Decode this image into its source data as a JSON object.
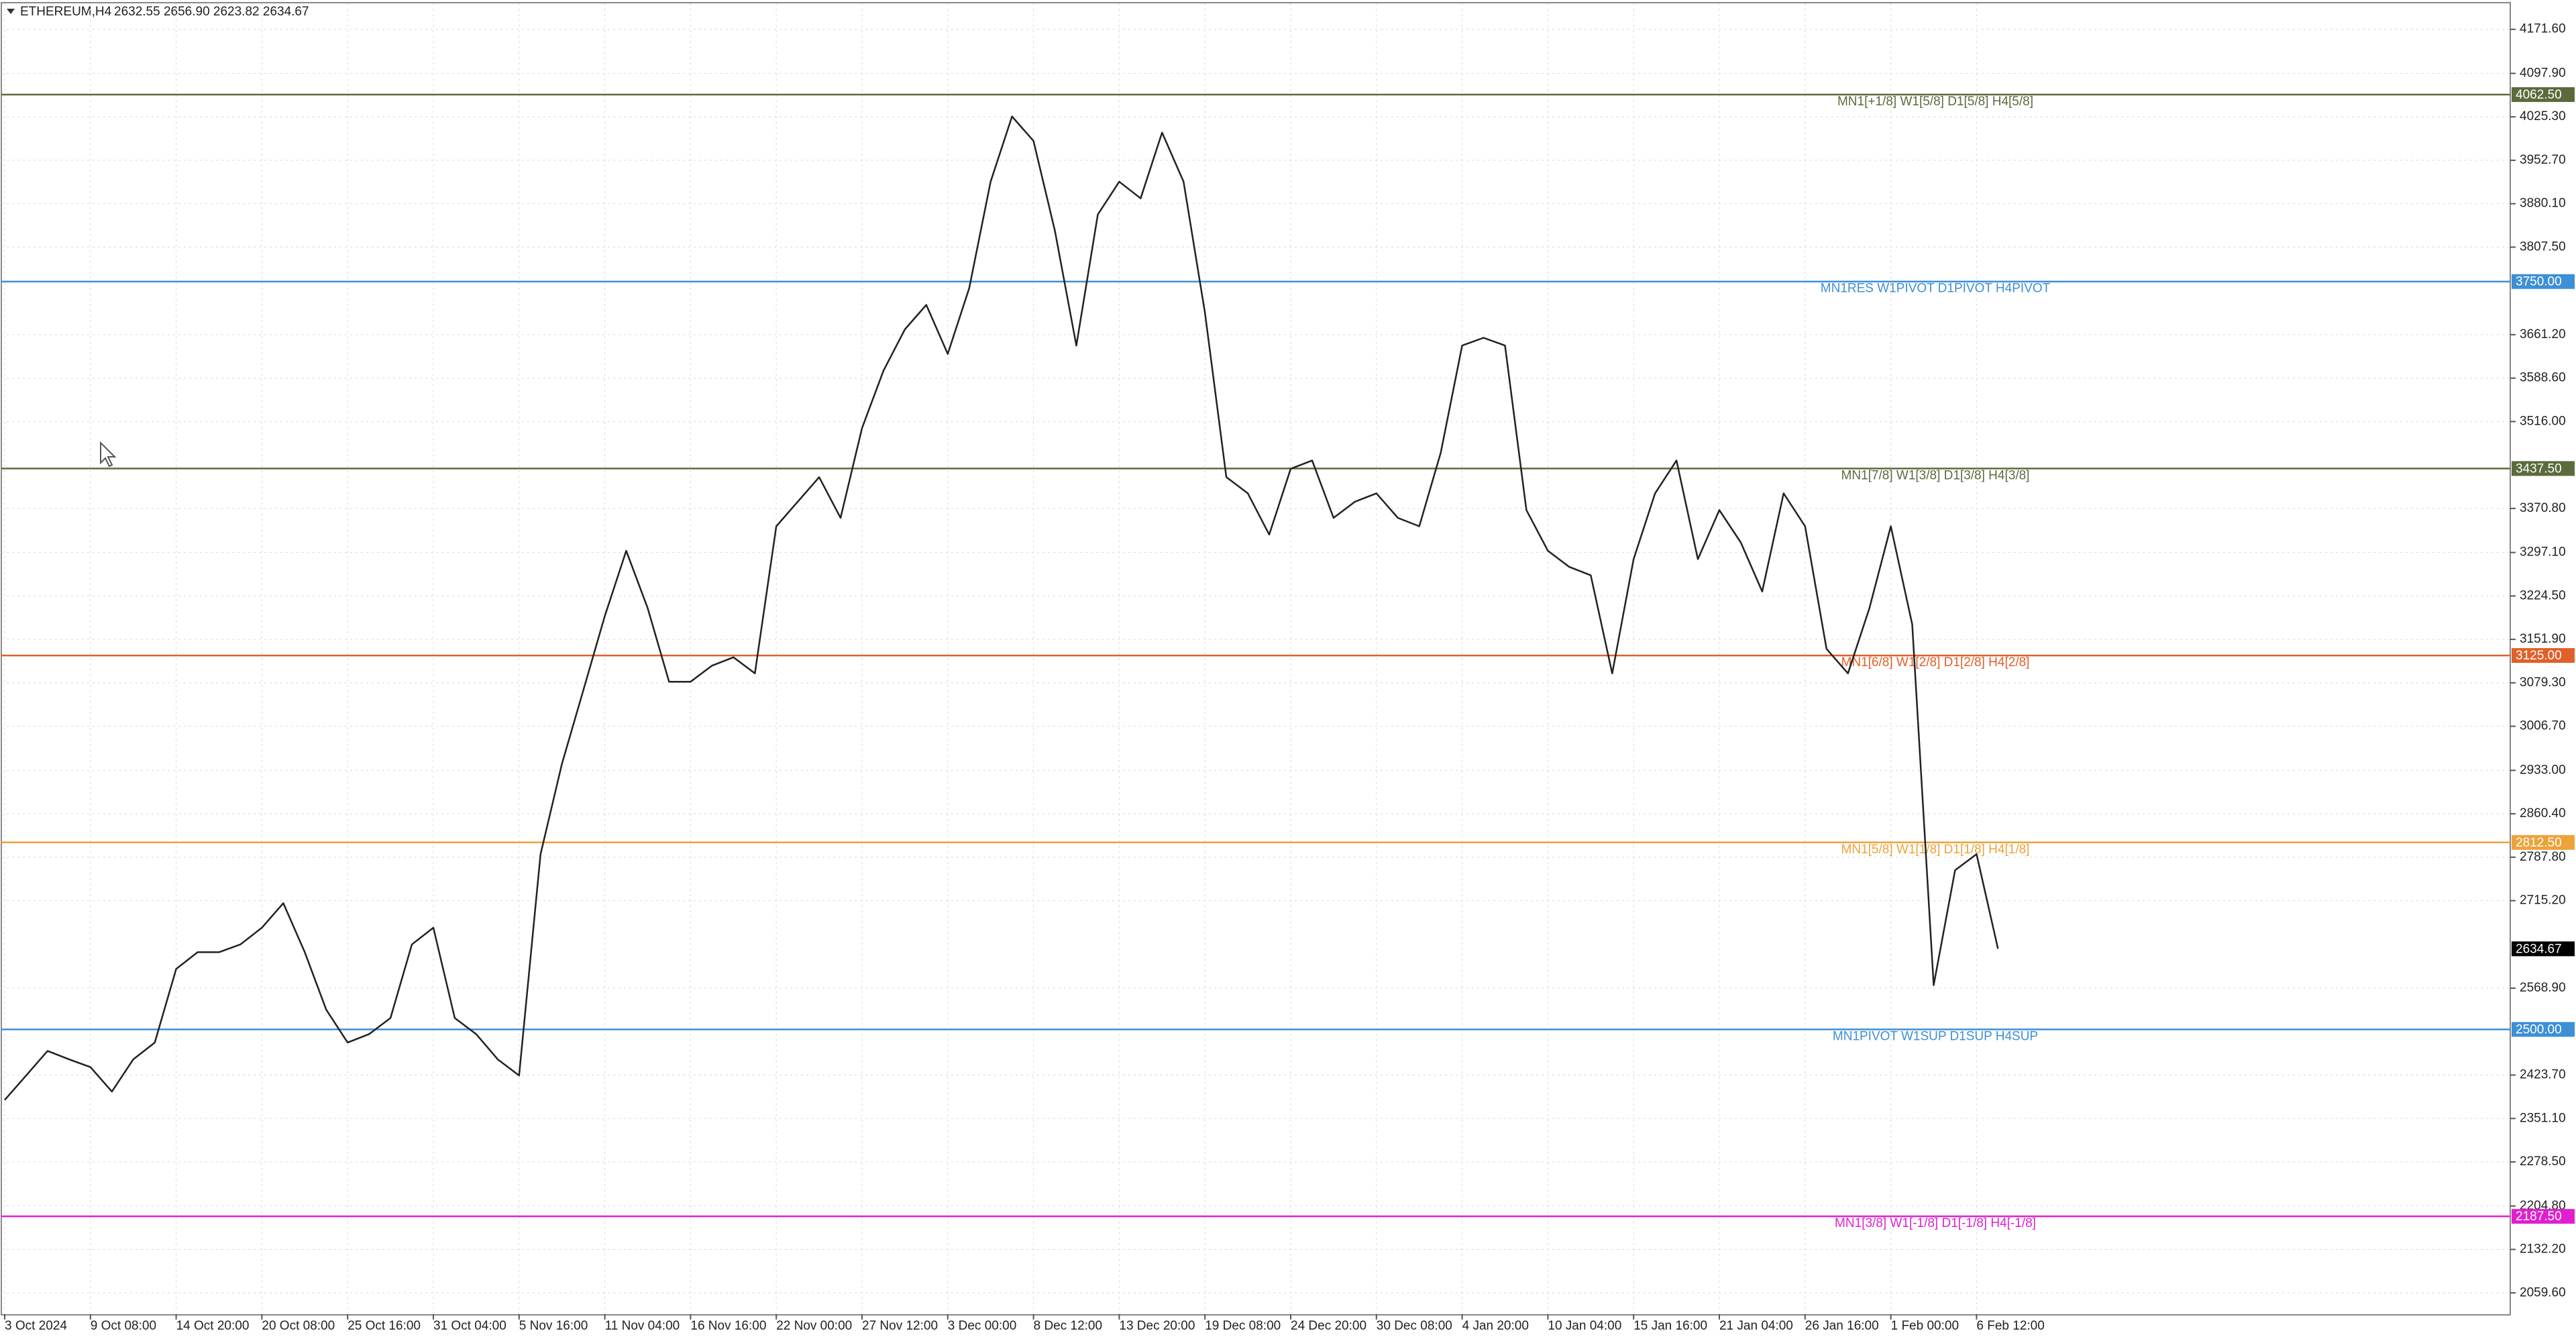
{
  "chart_data": {
    "type": "line",
    "header": {
      "symbol": "ETHEREUM,H4",
      "ohlc": "2632.55 2656.90 2623.82 2634.67"
    },
    "ylim": [
      2024,
      4215
    ],
    "yticks": [
      {
        "value": 4171.6,
        "label": "4171.60"
      },
      {
        "value": 4097.9,
        "label": "4097.90"
      },
      {
        "value": 4025.3,
        "label": "4025.30"
      },
      {
        "value": 3952.7,
        "label": "3952.70"
      },
      {
        "value": 3880.1,
        "label": "3880.10"
      },
      {
        "value": 3807.5,
        "label": "3807.50"
      },
      {
        "value": 3661.2,
        "label": "3661.20"
      },
      {
        "value": 3588.6,
        "label": "3588.60"
      },
      {
        "value": 3516,
        "label": "3516.00"
      },
      {
        "value": 3370.8,
        "label": "3370.80"
      },
      {
        "value": 3297.1,
        "label": "3297.10"
      },
      {
        "value": 3224.5,
        "label": "3224.50"
      },
      {
        "value": 3151.9,
        "label": "3151.90"
      },
      {
        "value": 3079.3,
        "label": "3079.30"
      },
      {
        "value": 3006.7,
        "label": "3006.70"
      },
      {
        "value": 2933,
        "label": "2933.00"
      },
      {
        "value": 2860.4,
        "label": "2860.40"
      },
      {
        "value": 2787.8,
        "label": "2787.80"
      },
      {
        "value": 2715.2,
        "label": "2715.20"
      },
      {
        "value": 2568.9,
        "label": "2568.90"
      },
      {
        "value": 2423.7,
        "label": "2423.70"
      },
      {
        "value": 2351.1,
        "label": "2351.10"
      },
      {
        "value": 2278.5,
        "label": "2278.50"
      },
      {
        "value": 2204.8,
        "label": "2204.80"
      },
      {
        "value": 2132.2,
        "label": "2132.20"
      },
      {
        "value": 2059.6,
        "label": "2059.60"
      }
    ],
    "x_labels": [
      "3 Oct 2024",
      "9 Oct 08:00",
      "14 Oct 20:00",
      "20 Oct 08:00",
      "25 Oct 16:00",
      "31 Oct 04:00",
      "5 Nov 16:00",
      "11 Nov 04:00",
      "16 Nov 16:00",
      "22 Nov 00:00",
      "27 Nov 12:00",
      "3 Dec 00:00",
      "8 Dec 12:00",
      "13 Dec 20:00",
      "19 Dec 08:00",
      "24 Dec 20:00",
      "30 Dec 08:00",
      "4 Jan 20:00",
      "10 Jan 04:00",
      "15 Jan 16:00",
      "21 Jan 04:00",
      "26 Jan 16:00",
      "1 Feb 00:00",
      "6 Feb 12:00"
    ],
    "color": "#222222",
    "values": [
      2382,
      2423,
      2464,
      2450,
      2437,
      2396,
      2450,
      2478,
      2601,
      2629,
      2629,
      2642,
      2670,
      2711,
      2629,
      2533,
      2478,
      2492,
      2519,
      2642,
      2670,
      2519,
      2492,
      2450,
      2423,
      2793,
      2944,
      3067,
      3191,
      3300,
      3204,
      3081,
      3081,
      3108,
      3122,
      3095,
      3341,
      3382,
      3423,
      3355,
      3505,
      3601,
      3670,
      3711,
      3629,
      3739,
      3917,
      4026,
      3985,
      3835,
      3643,
      3862,
      3917,
      3889,
      3999,
      3917,
      3698,
      3423,
      3396,
      3327,
      3437,
      3451,
      3355,
      3382,
      3396,
      3355,
      3341,
      3464,
      3643,
      3656,
      3643,
      3368,
      3300,
      3273,
      3259,
      3095,
      3286,
      3396,
      3451,
      3286,
      3368,
      3314,
      3232,
      3396,
      3341,
      3136,
      3095,
      3204,
      3341,
      3177,
      2574,
      2766,
      2793,
      2635
    ],
    "levels": [
      {
        "value": 4062.5,
        "label": "4062.50",
        "text": "MN1[+1/8] W1[5/8] D1[5/8] H4[5/8]",
        "color": "#5b6b3c"
      },
      {
        "value": 3750,
        "label": "3750.00",
        "text": "MN1RES W1PIVOT D1PIVOT H4PIVOT",
        "color": "#3d8fd6"
      },
      {
        "value": 3437.5,
        "label": "3437.50",
        "text": "MN1[7/8] W1[3/8] D1[3/8] H4[3/8]",
        "color": "#5b6b3c"
      },
      {
        "value": 3125,
        "label": "3125.00",
        "text": "MN1[6/8] W1[2/8] D1[2/8] H4[2/8]",
        "color": "#e0602a"
      },
      {
        "value": 2812.5,
        "label": "2812.50",
        "text": "MN1[5/8] W1[1/8] D1[1/8] H4[1/8]",
        "color": "#eda23a"
      },
      {
        "value": 2500,
        "label": "2500.00",
        "text": "MN1PIVOT W1SUP D1SUP H4SUP",
        "color": "#3d8fd6"
      },
      {
        "value": 2187.5,
        "label": "2187.50",
        "text": "MN1[3/8] W1[-1/8] D1[-1/8] H4[-1/8]",
        "color": "#e020d0"
      }
    ],
    "last": {
      "value": 2634.67,
      "label": "2634.67"
    }
  }
}
